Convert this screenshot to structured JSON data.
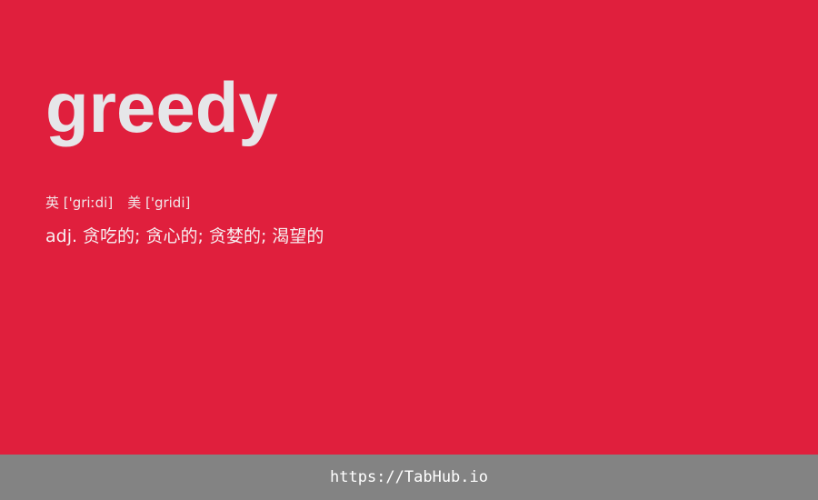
{
  "entry": {
    "word": "greedy",
    "phonetics": {
      "uk": "英 ['griːdi]",
      "us": "美 ['gridi]"
    },
    "definition": "adj. 贪吃的; 贪心的; 贪婪的; 渴望的"
  },
  "footer": {
    "link_text": "https://TabHub.io"
  },
  "colors": {
    "background": "#e01f3d",
    "footer_background": "#838383",
    "word_text": "#e6e6e9"
  }
}
